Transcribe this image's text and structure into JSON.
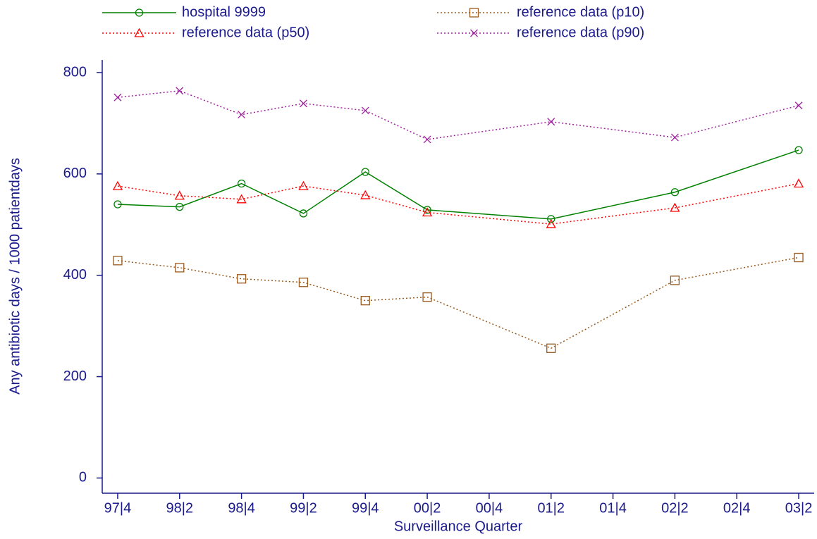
{
  "chart_data": {
    "type": "line",
    "x_label": "Surveillance Quarter",
    "y_label": "Any antibiotic days / 1000 patientdays",
    "x": [
      0,
      1,
      2,
      3,
      4,
      5,
      7,
      9,
      11
    ],
    "xlim": [
      -0.25,
      11.25
    ],
    "xticks": [
      {
        "value": 0,
        "label": "97|4"
      },
      {
        "value": 1,
        "label": "98|2"
      },
      {
        "value": 2,
        "label": "98|4"
      },
      {
        "value": 3,
        "label": "99|2"
      },
      {
        "value": 4,
        "label": "99|4"
      },
      {
        "value": 5,
        "label": "00|2"
      },
      {
        "value": 6,
        "label": "00|4"
      },
      {
        "value": 7,
        "label": "01|2"
      },
      {
        "value": 8,
        "label": "01|4"
      },
      {
        "value": 9,
        "label": "02|2"
      },
      {
        "value": 10,
        "label": "02|4"
      },
      {
        "value": 11,
        "label": "03|2"
      }
    ],
    "ylim": [
      -30,
      825
    ],
    "yticks": [
      0,
      200,
      400,
      600,
      800
    ],
    "legend": "top",
    "series": [
      {
        "name": "hospital 9999",
        "color": "#008000",
        "marker": "circle",
        "dash": "solid",
        "values": [
          540,
          535,
          581,
          522,
          604,
          529,
          511,
          564,
          647
        ]
      },
      {
        "name": "reference data (p10)",
        "color": "#9a5a1e",
        "marker": "square",
        "dash": "dotted",
        "values": [
          429,
          415,
          393,
          386,
          350,
          357,
          256,
          390,
          435
        ]
      },
      {
        "name": "reference data (p50)",
        "color": "#ff0000",
        "marker": "triangle",
        "dash": "dotted",
        "values": [
          576,
          557,
          550,
          576,
          558,
          524,
          501,
          533,
          581
        ]
      },
      {
        "name": "reference data (p90)",
        "color": "#a020a0",
        "marker": "cross",
        "dash": "dotted",
        "values": [
          751,
          764,
          717,
          739,
          725,
          668,
          703,
          672,
          735
        ]
      }
    ]
  }
}
